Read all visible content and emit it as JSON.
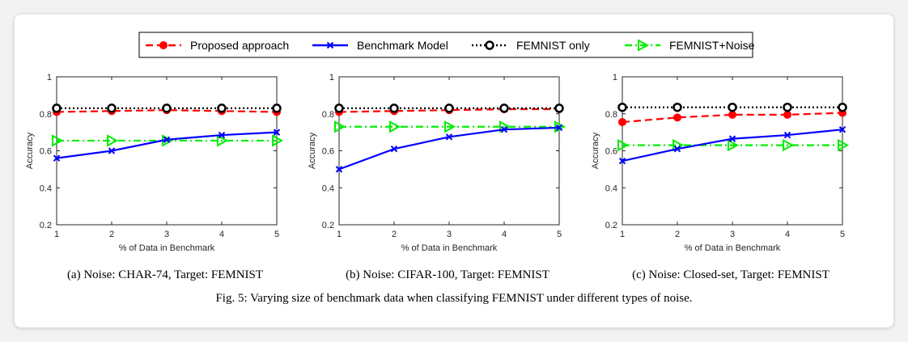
{
  "legend": [
    {
      "name": "Proposed approach",
      "color": "#ff0000",
      "dash": "dashed",
      "marker": "dot"
    },
    {
      "name": "Benchmark Model",
      "color": "#0000ff",
      "dash": "solid",
      "marker": "x"
    },
    {
      "name": "FEMNIST only",
      "color": "#000000",
      "dash": "dotted",
      "marker": "circle"
    },
    {
      "name": "FEMNIST+Noise",
      "color": "#00ee00",
      "dash": "dashdot",
      "marker": "triangle-right"
    }
  ],
  "figure_caption": "Fig. 5: Varying size of benchmark data when classifying FEMNIST under different types of noise.",
  "chart_data": [
    {
      "type": "line",
      "caption": "(a) Noise: CHAR-74, Target: FEMNIST",
      "xlabel": "% of Data in Benchmark",
      "ylabel": "Accuracy",
      "x": [
        1,
        2,
        3,
        4,
        5
      ],
      "xlim": [
        1,
        5
      ],
      "ylim": [
        0.2,
        1
      ],
      "yticks": [
        "0.2",
        "0.4",
        "0.6",
        "0.8",
        "1"
      ],
      "xticks": [
        "1",
        "2",
        "3",
        "4",
        "5"
      ],
      "series": [
        {
          "name": "Proposed approach",
          "values": [
            0.81,
            0.815,
            0.82,
            0.815,
            0.81
          ]
        },
        {
          "name": "Benchmark Model",
          "values": [
            0.56,
            0.6,
            0.66,
            0.685,
            0.7
          ]
        },
        {
          "name": "FEMNIST only",
          "values": [
            0.83,
            0.83,
            0.83,
            0.83,
            0.83
          ]
        },
        {
          "name": "FEMNIST+Noise",
          "values": [
            0.655,
            0.655,
            0.655,
            0.655,
            0.655
          ]
        }
      ]
    },
    {
      "type": "line",
      "caption": "(b) Noise: CIFAR-100, Target: FEMNIST",
      "xlabel": "% of Data in Benchmark",
      "ylabel": "Accuracy",
      "x": [
        1,
        2,
        3,
        4,
        5
      ],
      "xlim": [
        1,
        5
      ],
      "ylim": [
        0.2,
        1
      ],
      "yticks": [
        "0.2",
        "0.4",
        "0.6",
        "0.8",
        "1"
      ],
      "xticks": [
        "1",
        "2",
        "3",
        "4",
        "5"
      ],
      "series": [
        {
          "name": "Proposed approach",
          "values": [
            0.81,
            0.815,
            0.82,
            0.825,
            0.825
          ]
        },
        {
          "name": "Benchmark Model",
          "values": [
            0.5,
            0.61,
            0.675,
            0.715,
            0.725
          ]
        },
        {
          "name": "FEMNIST only",
          "values": [
            0.83,
            0.83,
            0.83,
            0.83,
            0.83
          ]
        },
        {
          "name": "FEMNIST+Noise",
          "values": [
            0.73,
            0.73,
            0.73,
            0.73,
            0.73
          ]
        }
      ]
    },
    {
      "type": "line",
      "caption": "(c) Noise: Closed-set, Target: FEMNIST",
      "xlabel": "% of Data in Benchmark",
      "ylabel": "Accuracy",
      "x": [
        1,
        2,
        3,
        4,
        5
      ],
      "xlim": [
        1,
        5
      ],
      "ylim": [
        0.2,
        1
      ],
      "yticks": [
        "0.2",
        "0.4",
        "0.6",
        "0.8",
        "1"
      ],
      "xticks": [
        "1",
        "2",
        "3",
        "4",
        "5"
      ],
      "series": [
        {
          "name": "Proposed approach",
          "values": [
            0.755,
            0.78,
            0.795,
            0.795,
            0.805
          ]
        },
        {
          "name": "Benchmark Model",
          "values": [
            0.545,
            0.61,
            0.665,
            0.685,
            0.715
          ]
        },
        {
          "name": "FEMNIST only",
          "values": [
            0.835,
            0.835,
            0.835,
            0.835,
            0.835
          ]
        },
        {
          "name": "FEMNIST+Noise",
          "values": [
            0.63,
            0.63,
            0.63,
            0.63,
            0.63
          ]
        }
      ]
    }
  ]
}
